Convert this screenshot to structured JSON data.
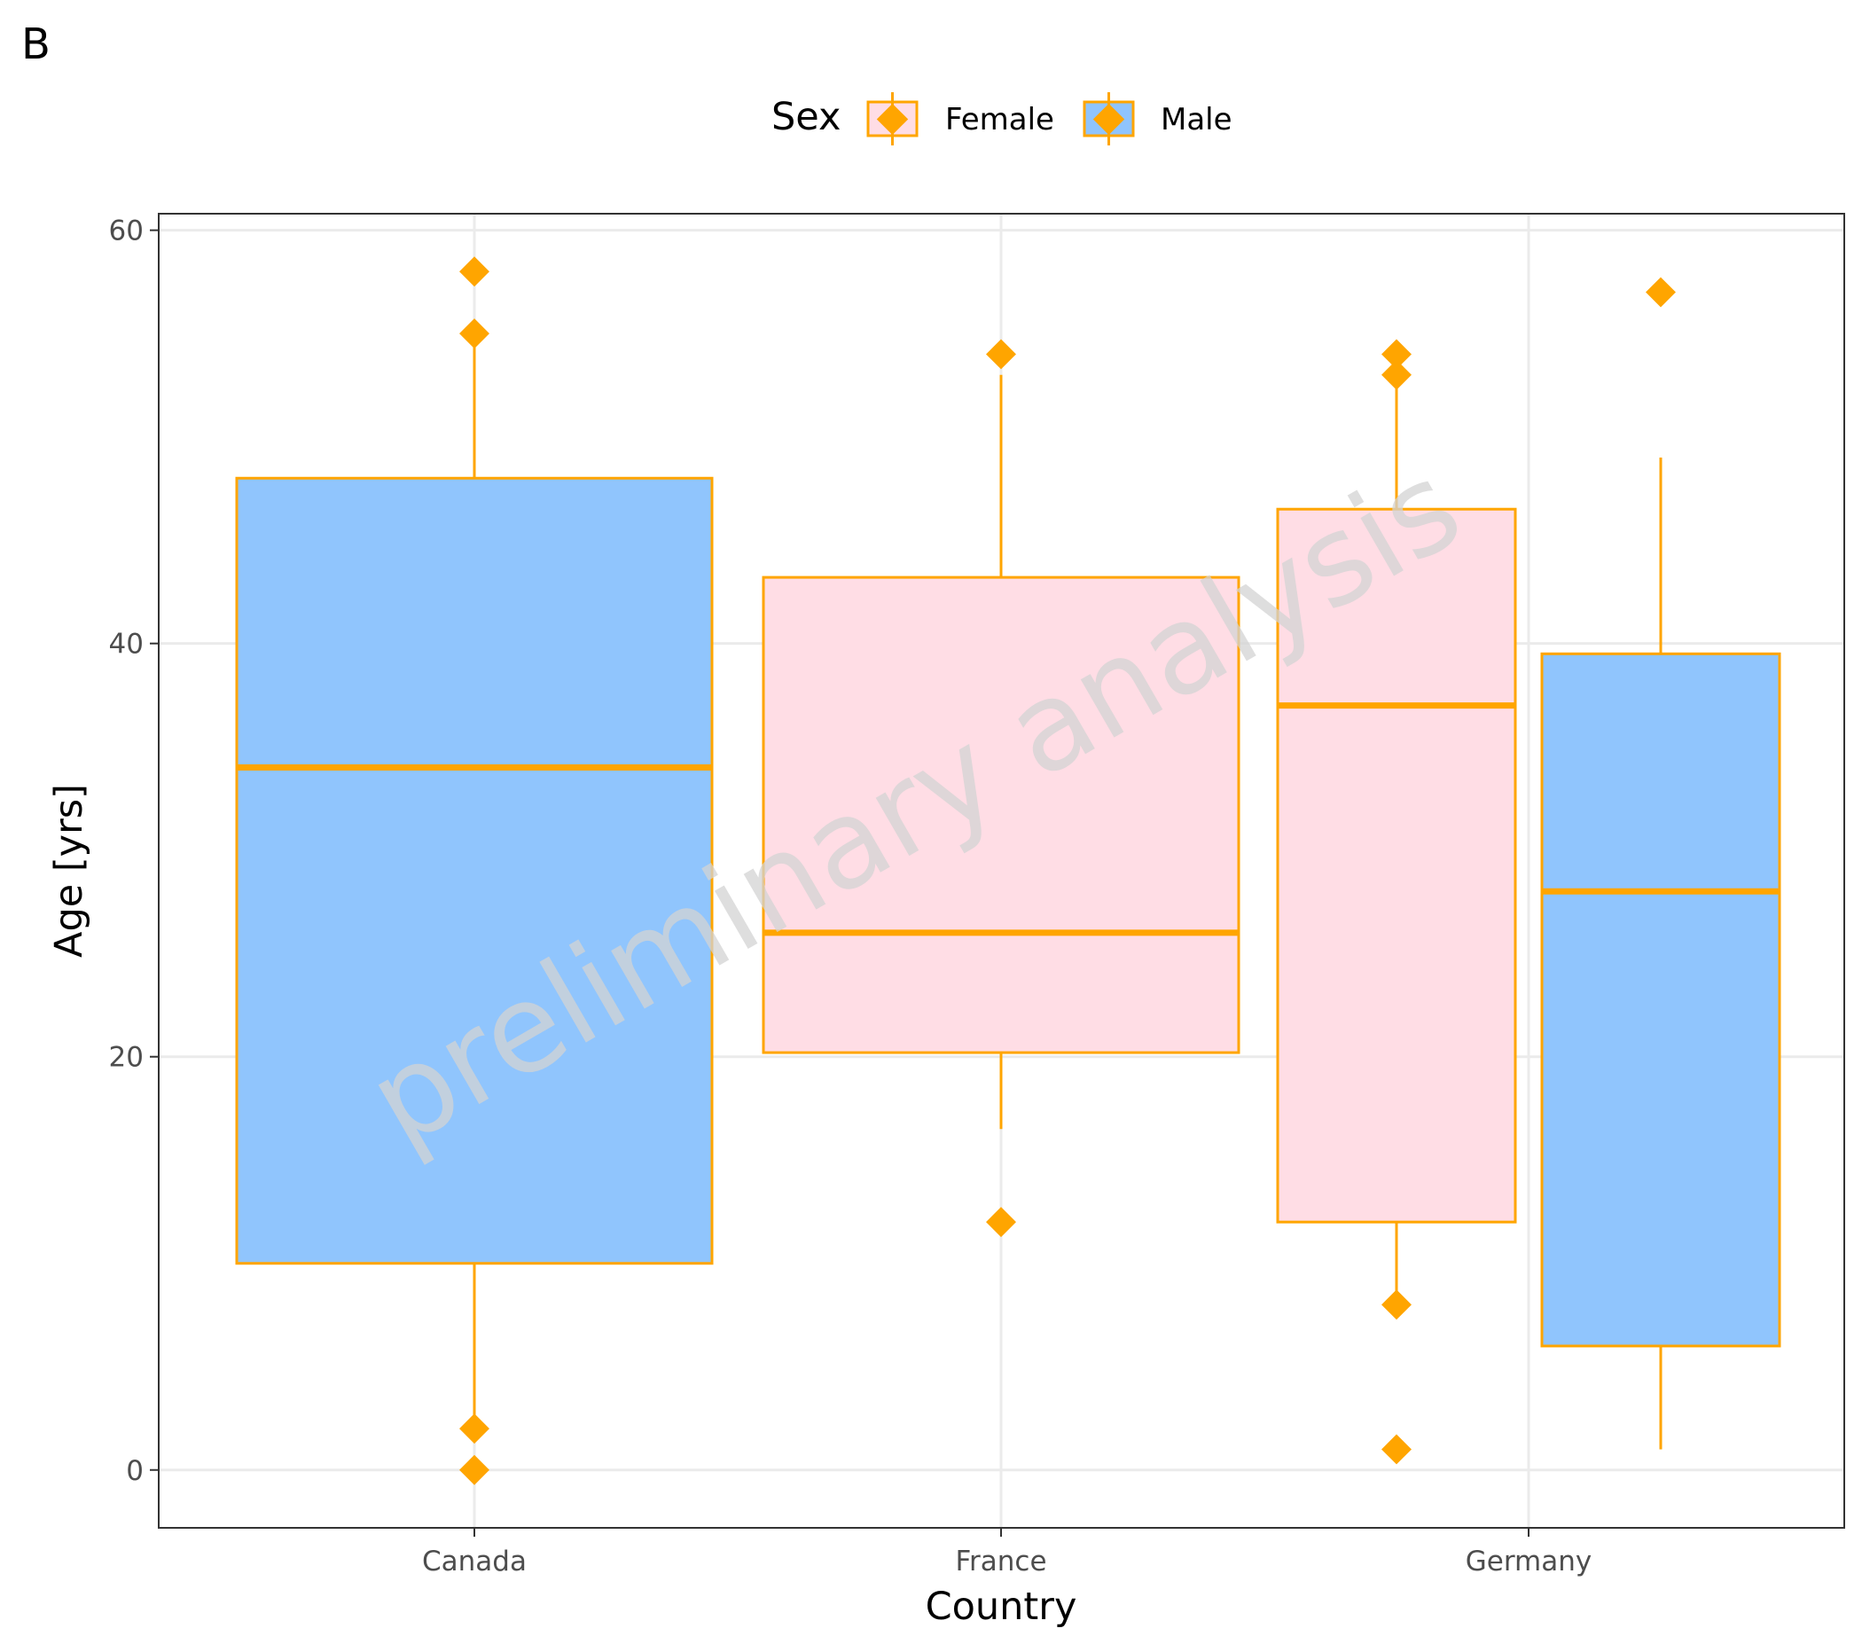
{
  "panel_tag": "B",
  "watermark": "preliminary analysis",
  "legend": {
    "title": "Sex",
    "items": [
      {
        "label": "Female",
        "fill": "#ffdde5"
      },
      {
        "label": "Male",
        "fill": "#8fc4fd"
      }
    ]
  },
  "colors": {
    "outline": "#ffa500",
    "grid": "#ebebeb",
    "watermark": "#d3d3d3",
    "female_fill": "#ffdde5",
    "male_fill": "#8fc4fd"
  },
  "chart_data": {
    "type": "boxplot",
    "xlabel": "Country",
    "ylabel": "Age [yrs]",
    "categories": [
      "Canada",
      "France",
      "Germany"
    ],
    "ylim": [
      -2.8,
      60.8
    ],
    "yticks": [
      0,
      20,
      40,
      60
    ],
    "grid": true,
    "legend_position": "top",
    "boxes": [
      {
        "category": "Canada",
        "sex": "Male",
        "q1": 10,
        "median": 34,
        "q3": 48,
        "whisker_low": 2,
        "whisker_high": 55,
        "outliers": [
          58,
          55,
          2,
          0
        ]
      },
      {
        "category": "France",
        "sex": "Female",
        "q1": 20.2,
        "median": 26,
        "q3": 43.2,
        "whisker_low": 16.5,
        "whisker_high": 53,
        "outliers": [
          54,
          12
        ]
      },
      {
        "category": "Germany",
        "sex": "Female",
        "q1": 12,
        "median": 37,
        "q3": 46.5,
        "whisker_low": 8,
        "whisker_high": 53,
        "outliers": [
          54,
          53,
          8,
          1
        ]
      },
      {
        "category": "Germany",
        "sex": "Male",
        "q1": 6,
        "median": 28,
        "q3": 39.5,
        "whisker_low": 1,
        "whisker_high": 49,
        "outliers": [
          57
        ]
      }
    ]
  }
}
